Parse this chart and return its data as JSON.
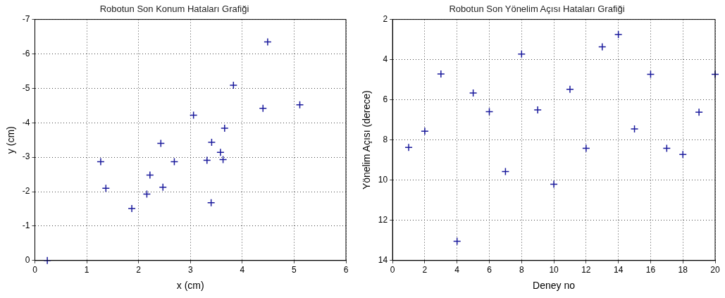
{
  "chart_data": [
    {
      "type": "scatter",
      "title": "Robotun Son Konum Hataları Grafiği",
      "xlabel": "x (cm)",
      "ylabel": "y (cm)",
      "color": "#1a1a9c",
      "marker": "cross",
      "grid": true,
      "x": [
        0.24,
        1.27,
        1.37,
        1.87,
        2.16,
        2.22,
        2.43,
        2.47,
        2.69,
        3.06,
        3.32,
        3.4,
        3.41,
        3.58,
        3.63,
        3.66,
        3.83,
        4.4,
        4.49,
        5.11
      ],
      "values": [
        0,
        -2.87,
        -2.1,
        -1.51,
        -1.93,
        -2.48,
        -3.4,
        -2.13,
        -2.87,
        -4.22,
        -2.91,
        -1.68,
        -3.43,
        -3.14,
        -2.93,
        -3.84,
        -5.09,
        -4.42,
        -6.35,
        -4.52
      ],
      "xlim": [
        0,
        6
      ],
      "xticks": [
        0,
        1,
        2,
        3,
        4,
        5,
        6
      ],
      "ylim": [
        0,
        -7
      ],
      "yticks": [
        0,
        -1,
        -2,
        -3,
        -4,
        -5,
        -6,
        -7
      ]
    },
    {
      "type": "scatter",
      "title": "Robotun Son Yönelim Açısı Hataları Grafiği",
      "xlabel": "Deney no",
      "ylabel": "Yönelim Açısı (derece)",
      "color": "#1a1a9c",
      "marker": "cross",
      "grid": true,
      "x": [
        1,
        2,
        3,
        4,
        5,
        6,
        7,
        8,
        9,
        10,
        11,
        12,
        13,
        14,
        15,
        16,
        17,
        18,
        19,
        20
      ],
      "values": [
        8.37,
        7.56,
        4.71,
        13.04,
        5.66,
        6.59,
        9.57,
        3.72,
        6.5,
        10.2,
        5.48,
        8.41,
        3.36,
        2.75,
        7.45,
        4.73,
        8.41,
        8.72,
        6.62,
        4.73
      ],
      "xlim": [
        0,
        20
      ],
      "xticks": [
        0,
        2,
        4,
        6,
        8,
        10,
        12,
        14,
        16,
        18,
        20
      ],
      "ylim": [
        14,
        2
      ],
      "yticks": [
        2,
        4,
        6,
        8,
        10,
        12,
        14
      ]
    }
  ]
}
